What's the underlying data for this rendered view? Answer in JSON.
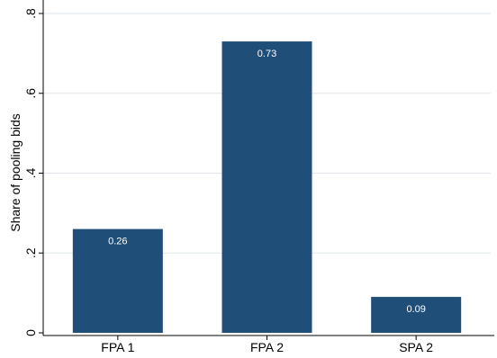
{
  "chart_data": {
    "type": "bar",
    "title": "",
    "xlabel": "",
    "ylabel": "Share of pooling bids",
    "categories": [
      "FPA 1",
      "FPA 2",
      "SPA 2"
    ],
    "values": [
      0.26,
      0.73,
      0.09
    ],
    "value_labels": [
      "0.26",
      "0.73",
      "0.09"
    ],
    "ylim": [
      0,
      0.8
    ],
    "yticks": [
      0,
      0.2,
      0.4,
      0.6,
      0.8
    ],
    "ytick_labels": [
      "0",
      ".2",
      ".4",
      ".6",
      ".8"
    ],
    "ytick_orientation": "rotated-vertical",
    "grid": "horizontal",
    "legend": "none",
    "bar_color": "#1f4e79",
    "gridline_color": "#dfe5ea",
    "axis_color": "#000000",
    "value_label_color": "#ffffff"
  }
}
